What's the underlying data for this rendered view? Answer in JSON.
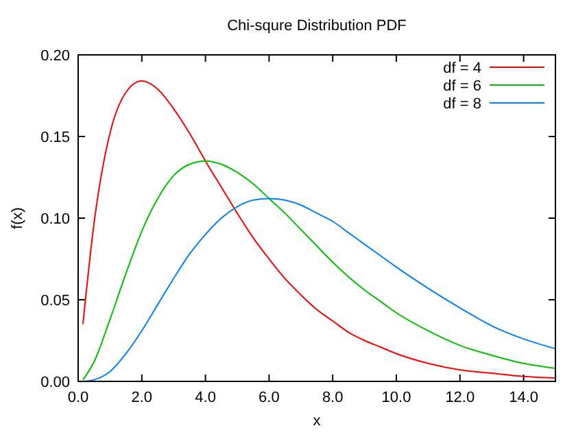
{
  "chart_data": {
    "type": "line",
    "title": "Chi-squre Distribution PDF",
    "xlabel": "x",
    "ylabel": "f(x)",
    "x": [
      0.15,
      0.5,
      1,
      1.5,
      2,
      2.5,
      3,
      3.5,
      4,
      4.5,
      5,
      5.5,
      6,
      6.5,
      7,
      7.5,
      8,
      8.5,
      9,
      9.5,
      10,
      11,
      12,
      13,
      14,
      15
    ],
    "series": [
      {
        "name": "df = 4",
        "color": "#ff0000",
        "values": [
          0.035,
          0.097,
          0.152,
          0.177,
          0.184,
          0.179,
          0.167,
          0.152,
          0.135,
          0.119,
          0.103,
          0.088,
          0.075,
          0.063,
          0.053,
          0.044,
          0.037,
          0.03,
          0.025,
          0.021,
          0.017,
          0.011,
          0.007,
          0.005,
          0.003,
          0.002
        ]
      },
      {
        "name": "df = 6",
        "color": "#00c000",
        "values": [
          0.001,
          0.012,
          0.038,
          0.066,
          0.092,
          0.112,
          0.126,
          0.133,
          0.135,
          0.133,
          0.128,
          0.121,
          0.112,
          0.103,
          0.093,
          0.083,
          0.073,
          0.064,
          0.056,
          0.049,
          0.042,
          0.031,
          0.022,
          0.016,
          0.011,
          0.008
        ]
      },
      {
        "name": "df = 8",
        "color": "#0080ff",
        "values": [
          0.0,
          0.001,
          0.006,
          0.017,
          0.031,
          0.047,
          0.063,
          0.078,
          0.09,
          0.1,
          0.107,
          0.111,
          0.112,
          0.111,
          0.108,
          0.103,
          0.098,
          0.091,
          0.084,
          0.077,
          0.07,
          0.057,
          0.045,
          0.034,
          0.026,
          0.02
        ]
      }
    ],
    "xlim": [
      0,
      15
    ],
    "xticks": [
      {
        "value": 0,
        "label": "0.0"
      },
      {
        "value": 2,
        "label": "2.0"
      },
      {
        "value": 4,
        "label": "4.0"
      },
      {
        "value": 6,
        "label": "6.0"
      },
      {
        "value": 8,
        "label": "8.0"
      },
      {
        "value": 10,
        "label": "10.0"
      },
      {
        "value": 12,
        "label": "12.0"
      },
      {
        "value": 14,
        "label": "14.0"
      }
    ],
    "ylim": [
      0,
      0.2
    ],
    "yticks": [
      {
        "value": 0,
        "label": "0.00"
      },
      {
        "value": 0.05,
        "label": "0.05"
      },
      {
        "value": 0.1,
        "label": "0.10"
      },
      {
        "value": 0.15,
        "label": "0.15"
      },
      {
        "value": 0.2,
        "label": "0.20"
      }
    ],
    "legend": "top right",
    "grid": false
  }
}
